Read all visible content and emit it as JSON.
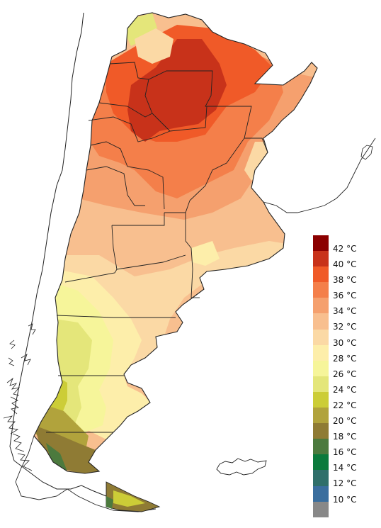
{
  "legend": {
    "entries": [
      {
        "label": "42 °C",
        "color": "#8b0000"
      },
      {
        "label": "40 °C",
        "color": "#c8321a"
      },
      {
        "label": "38 °C",
        "color": "#f05a28"
      },
      {
        "label": "36 °C",
        "color": "#f47f4a"
      },
      {
        "label": "34 °C",
        "color": "#f5a06e"
      },
      {
        "label": "32 °C",
        "color": "#f8bf8f"
      },
      {
        "label": "30 °C",
        "color": "#fbd9a5"
      },
      {
        "label": "28 °C",
        "color": "#fdeeaa"
      },
      {
        "label": "26 °C",
        "color": "#f6f59a"
      },
      {
        "label": "24 °C",
        "color": "#e4e67a"
      },
      {
        "label": "22 °C",
        "color": "#cccd37"
      },
      {
        "label": "20 °C",
        "color": "#b1a33c"
      },
      {
        "label": "18 °C",
        "color": "#8f7b34"
      },
      {
        "label": "16 °C",
        "color": "#4c7a3e"
      },
      {
        "label": "14 °C",
        "color": "#0b7a3c"
      },
      {
        "label": "12 °C",
        "color": "#2f6f6a"
      },
      {
        "label": "10 °C",
        "color": "#3a6e9e"
      },
      {
        "label": "",
        "color": "#888888"
      }
    ]
  }
}
